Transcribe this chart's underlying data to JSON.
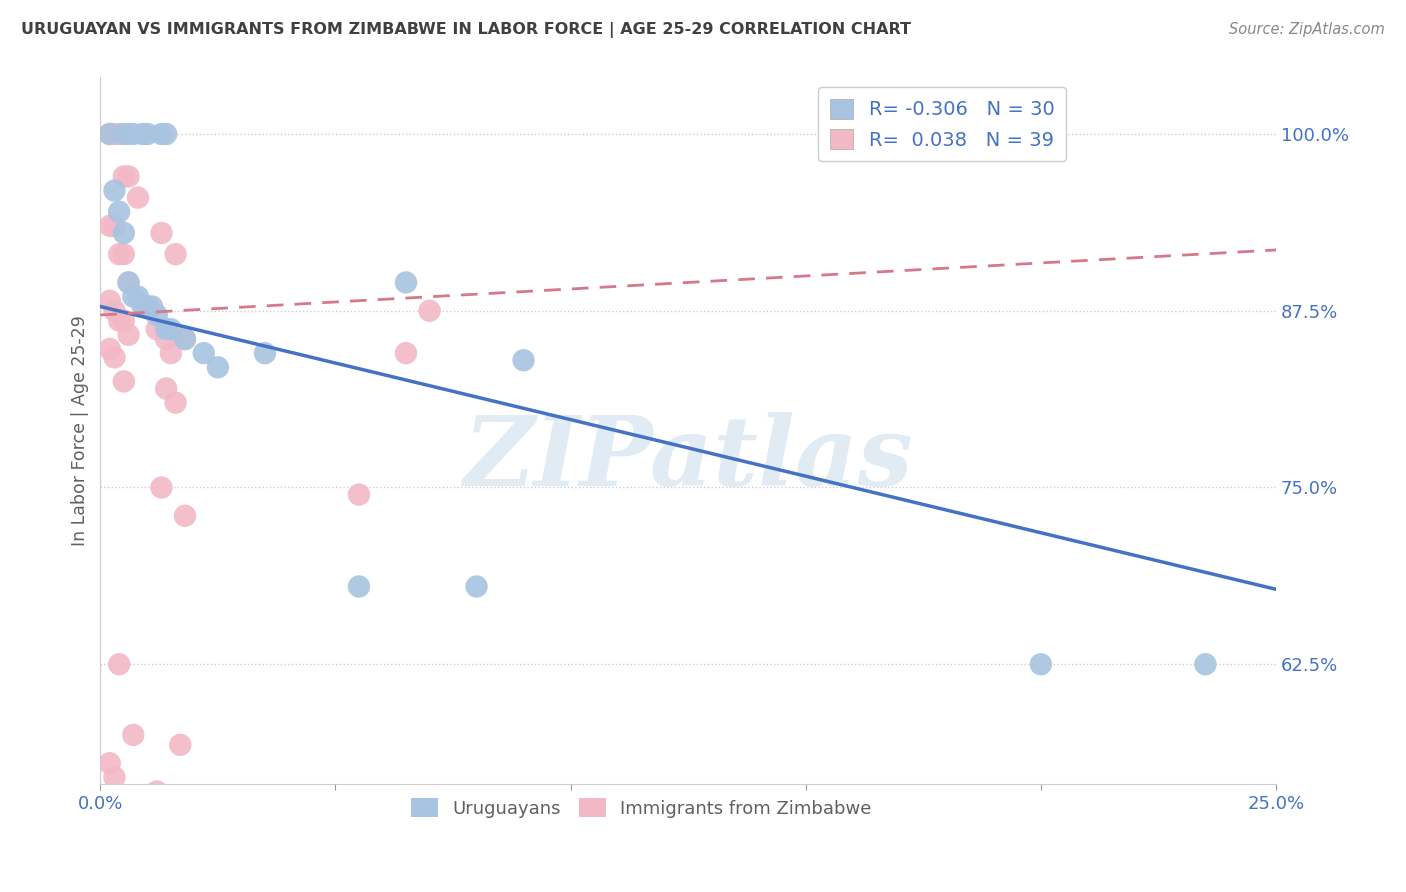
{
  "title": "URUGUAYAN VS IMMIGRANTS FROM ZIMBABWE IN LABOR FORCE | AGE 25-29 CORRELATION CHART",
  "source": "Source: ZipAtlas.com",
  "ylabel": "In Labor Force | Age 25-29",
  "xlim": [
    0.0,
    0.25
  ],
  "ylim": [
    0.54,
    1.04
  ],
  "yticks": [
    0.625,
    0.75,
    0.875,
    1.0
  ],
  "ytick_labels": [
    "62.5%",
    "75.0%",
    "87.5%",
    "100.0%"
  ],
  "xticks": [
    0.0,
    0.05,
    0.1,
    0.15,
    0.2,
    0.25
  ],
  "xtick_labels": [
    "0.0%",
    "",
    "",
    "",
    "",
    "25.0%"
  ],
  "blue_color": "#a8c4e0",
  "pink_color": "#f2b8c6",
  "blue_line_color": "#4472c4",
  "pink_line_color": "#d4788a",
  "R_blue": -0.306,
  "N_blue": 30,
  "R_pink": 0.038,
  "N_pink": 39,
  "blue_points": [
    [
      0.002,
      1.0
    ],
    [
      0.005,
      1.0
    ],
    [
      0.006,
      1.0
    ],
    [
      0.007,
      1.0
    ],
    [
      0.009,
      1.0
    ],
    [
      0.01,
      1.0
    ],
    [
      0.013,
      1.0
    ],
    [
      0.014,
      1.0
    ],
    [
      0.003,
      0.96
    ],
    [
      0.004,
      0.945
    ],
    [
      0.005,
      0.93
    ],
    [
      0.006,
      0.895
    ],
    [
      0.007,
      0.885
    ],
    [
      0.008,
      0.885
    ],
    [
      0.009,
      0.878
    ],
    [
      0.01,
      0.878
    ],
    [
      0.011,
      0.878
    ],
    [
      0.012,
      0.872
    ],
    [
      0.014,
      0.862
    ],
    [
      0.015,
      0.862
    ],
    [
      0.018,
      0.855
    ],
    [
      0.022,
      0.845
    ],
    [
      0.025,
      0.835
    ],
    [
      0.035,
      0.845
    ],
    [
      0.065,
      0.895
    ],
    [
      0.09,
      0.84
    ],
    [
      0.055,
      0.68
    ],
    [
      0.08,
      0.68
    ],
    [
      0.2,
      0.625
    ],
    [
      0.235,
      0.625
    ]
  ],
  "pink_points": [
    [
      0.002,
      1.0
    ],
    [
      0.003,
      1.0
    ],
    [
      0.004,
      1.0
    ],
    [
      0.005,
      0.97
    ],
    [
      0.006,
      0.97
    ],
    [
      0.008,
      0.955
    ],
    [
      0.002,
      0.935
    ],
    [
      0.003,
      0.935
    ],
    [
      0.004,
      0.915
    ],
    [
      0.005,
      0.915
    ],
    [
      0.006,
      0.895
    ],
    [
      0.002,
      0.882
    ],
    [
      0.003,
      0.875
    ],
    [
      0.004,
      0.868
    ],
    [
      0.005,
      0.868
    ],
    [
      0.006,
      0.858
    ],
    [
      0.002,
      0.848
    ],
    [
      0.003,
      0.842
    ],
    [
      0.013,
      0.93
    ],
    [
      0.016,
      0.915
    ],
    [
      0.01,
      0.878
    ],
    [
      0.012,
      0.862
    ],
    [
      0.014,
      0.855
    ],
    [
      0.018,
      0.855
    ],
    [
      0.015,
      0.845
    ],
    [
      0.005,
      0.825
    ],
    [
      0.014,
      0.82
    ],
    [
      0.016,
      0.81
    ],
    [
      0.07,
      0.875
    ],
    [
      0.065,
      0.845
    ],
    [
      0.013,
      0.75
    ],
    [
      0.018,
      0.73
    ],
    [
      0.055,
      0.745
    ],
    [
      0.004,
      0.625
    ],
    [
      0.007,
      0.575
    ],
    [
      0.017,
      0.568
    ],
    [
      0.002,
      0.555
    ],
    [
      0.003,
      0.545
    ],
    [
      0.012,
      0.535
    ]
  ],
  "watermark": "ZIPatlas",
  "bg_color": "#ffffff",
  "grid_color": "#cccccc",
  "title_color": "#404040",
  "axis_label_color": "#606060",
  "tick_color": "#4472c4"
}
